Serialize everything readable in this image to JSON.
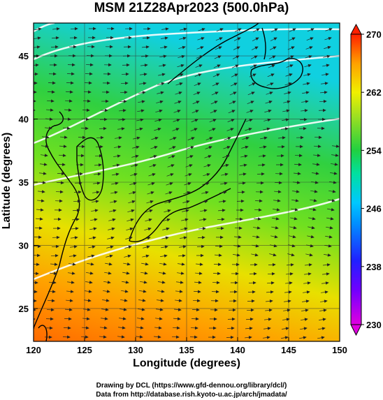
{
  "title": "MSM 21Z28Apr2023 (500.0hPa)",
  "x_label": "Longitude (degrees)",
  "y_label": "Latitude  (degrees)",
  "credit_line1": "Drawing by DCL (https://www.gfd-dennou.org/library/dcl/)",
  "credit_line2": "Data from http://database.rish.kyoto-u.ac.jp/arch/jmadata/",
  "map": {
    "lon_range": [
      120,
      150
    ],
    "lat_range": [
      22.4,
      47.6
    ],
    "lon_ticks": [
      120,
      125,
      130,
      135,
      140,
      145,
      150
    ],
    "lat_ticks": [
      25,
      30,
      35,
      40,
      45
    ],
    "grid": true,
    "field": "temperature (K) with wind streamlines"
  },
  "colorbar": {
    "min": 230,
    "max": 270,
    "tick_labels": [
      "230",
      "238",
      "246",
      "254",
      "262",
      "270"
    ],
    "colors": [
      "#e000e0",
      "#2020ff",
      "#00c8ff",
      "#20d040",
      "#f0f000",
      "#ff2000"
    ]
  }
}
